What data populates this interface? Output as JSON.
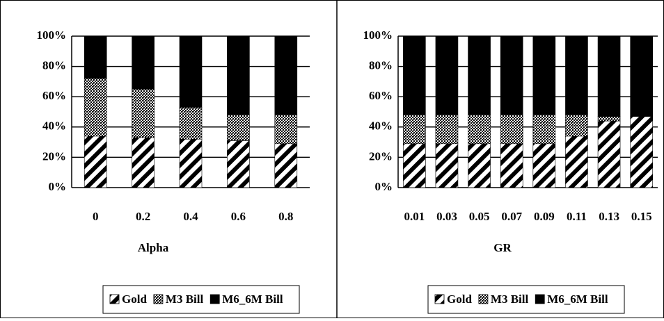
{
  "chart_data": [
    {
      "type": "stacked_bar",
      "x_label": "Alpha",
      "categories": [
        "0",
        "0.2",
        "0.4",
        "0.6",
        "0.8"
      ],
      "series": [
        {
          "name": "Gold",
          "color": "#000000",
          "pattern": "diagonal",
          "values": [
            34,
            33,
            32,
            31,
            29
          ]
        },
        {
          "name": "M3 Bill",
          "color": "#000000",
          "pattern": "dots",
          "values": [
            38,
            32,
            21,
            17,
            19
          ]
        },
        {
          "name": "M6_6M Bill",
          "color": "#000000",
          "pattern": "solid",
          "values": [
            28,
            35,
            47,
            52,
            52
          ]
        }
      ],
      "ylim": [
        0,
        100
      ],
      "yticks": [
        {
          "value": 0,
          "label": "0%"
        },
        {
          "value": 20,
          "label": "20%"
        },
        {
          "value": 40,
          "label": "40%"
        },
        {
          "value": 60,
          "label": "60%"
        },
        {
          "value": 80,
          "label": "80%"
        },
        {
          "value": 100,
          "label": "100%"
        }
      ],
      "grid": true,
      "legend": "bottom"
    },
    {
      "type": "stacked_bar",
      "x_label": "GR",
      "categories": [
        "0.01",
        "0.03",
        "0.05",
        "0.07",
        "0.09",
        "0.11",
        "0.13",
        "0.15"
      ],
      "series": [
        {
          "name": "Gold",
          "color": "#000000",
          "pattern": "diagonal",
          "values": [
            29,
            29,
            29,
            29,
            29,
            34,
            44,
            47
          ]
        },
        {
          "name": "M3 Bill",
          "color": "#000000",
          "pattern": "dots",
          "values": [
            19,
            19,
            19,
            19,
            19,
            14,
            3,
            0
          ]
        },
        {
          "name": "M6_6M Bill",
          "color": "#000000",
          "pattern": "solid",
          "values": [
            52,
            52,
            52,
            52,
            52,
            52,
            53,
            53
          ]
        }
      ],
      "ylim": [
        0,
        100
      ],
      "yticks": [
        {
          "value": 0,
          "label": "0%"
        },
        {
          "value": 20,
          "label": "20%"
        },
        {
          "value": 40,
          "label": "40%"
        },
        {
          "value": 60,
          "label": "60%"
        },
        {
          "value": 80,
          "label": "80%"
        },
        {
          "value": 100,
          "label": "100%"
        }
      ],
      "grid": true,
      "legend": "bottom"
    }
  ]
}
